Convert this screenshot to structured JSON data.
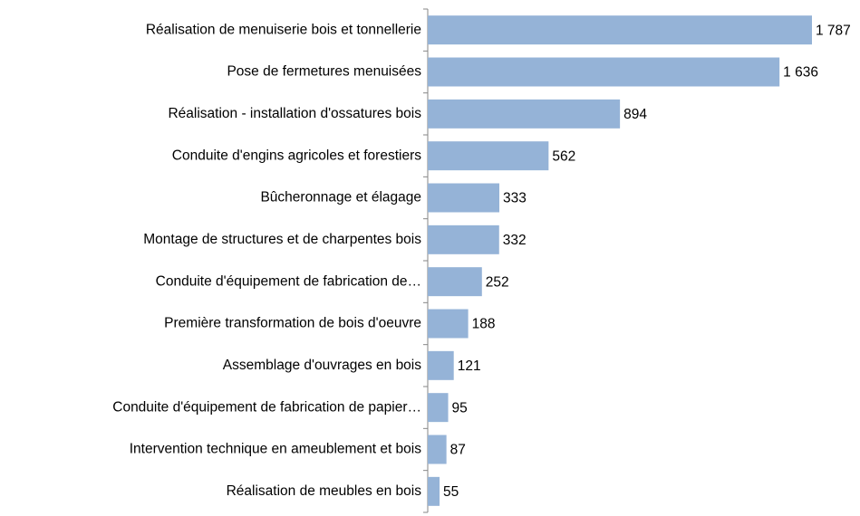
{
  "chart_data": {
    "type": "bar",
    "orientation": "horizontal",
    "categories": [
      "Réalisation de menuiserie bois et tonnellerie",
      "Pose de fermetures menuisées",
      "Réalisation - installation d'ossatures bois",
      "Conduite d'engins agricoles et forestiers",
      "Bûcheronnage et élagage",
      "Montage de structures et de charpentes bois",
      "Conduite d'équipement de fabrication de…",
      "Première transformation de bois d'oeuvre",
      "Assemblage d'ouvrages en bois",
      "Conduite d'équipement de fabrication de papier…",
      "Intervention technique en ameublement et bois",
      "Réalisation de meubles en bois"
    ],
    "values": [
      1787,
      1636,
      894,
      562,
      333,
      332,
      252,
      188,
      121,
      95,
      87,
      55
    ],
    "value_labels": [
      "1 787",
      "1 636",
      "894",
      "562",
      "333",
      "332",
      "252",
      "188",
      "121",
      "95",
      "87",
      "55"
    ],
    "color": "#95b3d7"
  }
}
